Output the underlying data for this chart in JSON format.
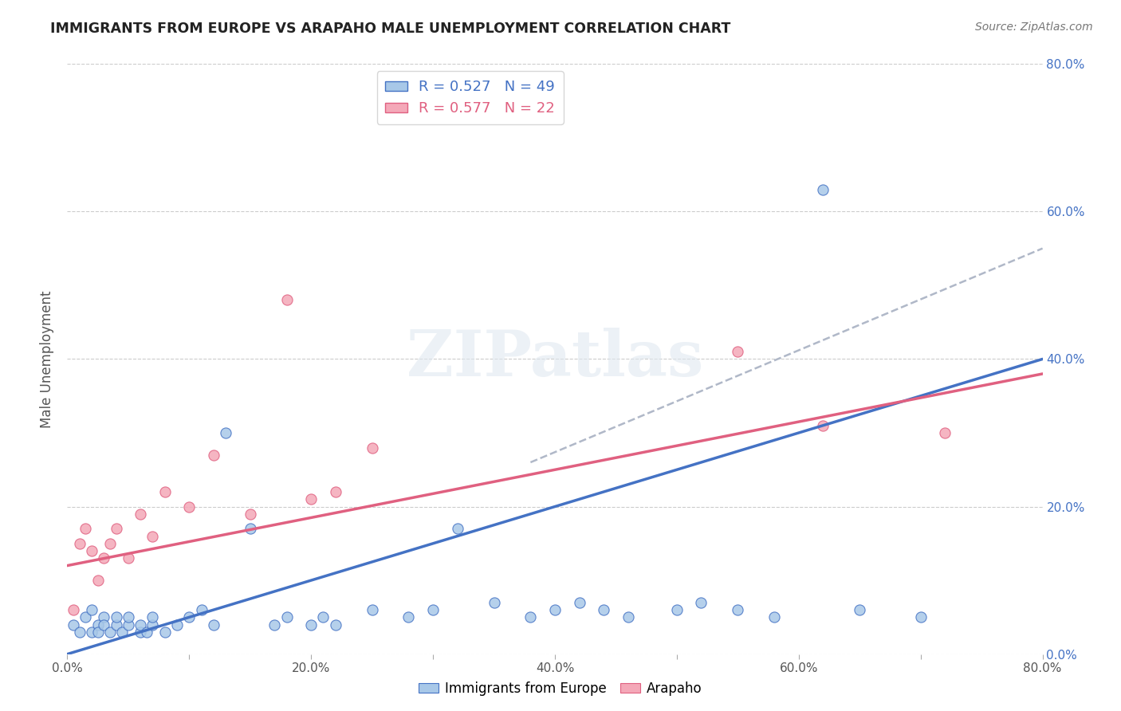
{
  "title": "IMMIGRANTS FROM EUROPE VS ARAPAHO MALE UNEMPLOYMENT CORRELATION CHART",
  "source": "Source: ZipAtlas.com",
  "ylabel": "Male Unemployment",
  "x_tick_labels": [
    "0.0%",
    "",
    "20.0%",
    "",
    "40.0%",
    "",
    "60.0%",
    "",
    "80.0%"
  ],
  "y_tick_labels_right": [
    "0.0%",
    "20.0%",
    "40.0%",
    "60.0%",
    "80.0%"
  ],
  "xlim": [
    0.0,
    0.8
  ],
  "ylim": [
    0.0,
    0.8
  ],
  "xticks": [
    0.0,
    0.1,
    0.2,
    0.3,
    0.4,
    0.5,
    0.6,
    0.7,
    0.8
  ],
  "yticks": [
    0.0,
    0.2,
    0.4,
    0.6,
    0.8
  ],
  "blue_R": "0.527",
  "blue_N": "49",
  "pink_R": "0.577",
  "pink_N": "22",
  "blue_color": "#a8c8e8",
  "pink_color": "#f4a8b8",
  "blue_line_color": "#4472c4",
  "pink_line_color": "#e06080",
  "dash_line_color": "#b0b8c8",
  "watermark_text": "ZIPatlas",
  "legend_labels": [
    "Immigrants from Europe",
    "Arapaho"
  ],
  "blue_line_x": [
    0.0,
    0.8
  ],
  "blue_line_y": [
    0.0,
    0.4
  ],
  "pink_line_x": [
    0.0,
    0.8
  ],
  "pink_line_y": [
    0.12,
    0.38
  ],
  "dash_line_x": [
    0.38,
    0.8
  ],
  "dash_line_y": [
    0.26,
    0.55
  ],
  "blue_scatter_x": [
    0.005,
    0.01,
    0.015,
    0.02,
    0.02,
    0.025,
    0.025,
    0.03,
    0.03,
    0.035,
    0.04,
    0.04,
    0.045,
    0.05,
    0.05,
    0.06,
    0.06,
    0.065,
    0.07,
    0.07,
    0.08,
    0.09,
    0.1,
    0.11,
    0.12,
    0.13,
    0.15,
    0.17,
    0.18,
    0.2,
    0.21,
    0.22,
    0.25,
    0.28,
    0.3,
    0.32,
    0.35,
    0.38,
    0.4,
    0.42,
    0.44,
    0.46,
    0.5,
    0.52,
    0.55,
    0.58,
    0.62,
    0.65,
    0.7
  ],
  "blue_scatter_y": [
    0.04,
    0.03,
    0.05,
    0.03,
    0.06,
    0.04,
    0.03,
    0.05,
    0.04,
    0.03,
    0.04,
    0.05,
    0.03,
    0.04,
    0.05,
    0.03,
    0.04,
    0.03,
    0.04,
    0.05,
    0.03,
    0.04,
    0.05,
    0.06,
    0.04,
    0.3,
    0.17,
    0.04,
    0.05,
    0.04,
    0.05,
    0.04,
    0.06,
    0.05,
    0.06,
    0.17,
    0.07,
    0.05,
    0.06,
    0.07,
    0.06,
    0.05,
    0.06,
    0.07,
    0.06,
    0.05,
    0.63,
    0.06,
    0.05
  ],
  "pink_scatter_x": [
    0.005,
    0.01,
    0.015,
    0.02,
    0.025,
    0.03,
    0.035,
    0.04,
    0.05,
    0.06,
    0.07,
    0.08,
    0.1,
    0.12,
    0.15,
    0.18,
    0.2,
    0.22,
    0.25,
    0.55,
    0.62,
    0.72
  ],
  "pink_scatter_y": [
    0.06,
    0.15,
    0.17,
    0.14,
    0.1,
    0.13,
    0.15,
    0.17,
    0.13,
    0.19,
    0.16,
    0.22,
    0.2,
    0.27,
    0.19,
    0.48,
    0.21,
    0.22,
    0.28,
    0.41,
    0.31,
    0.3
  ]
}
